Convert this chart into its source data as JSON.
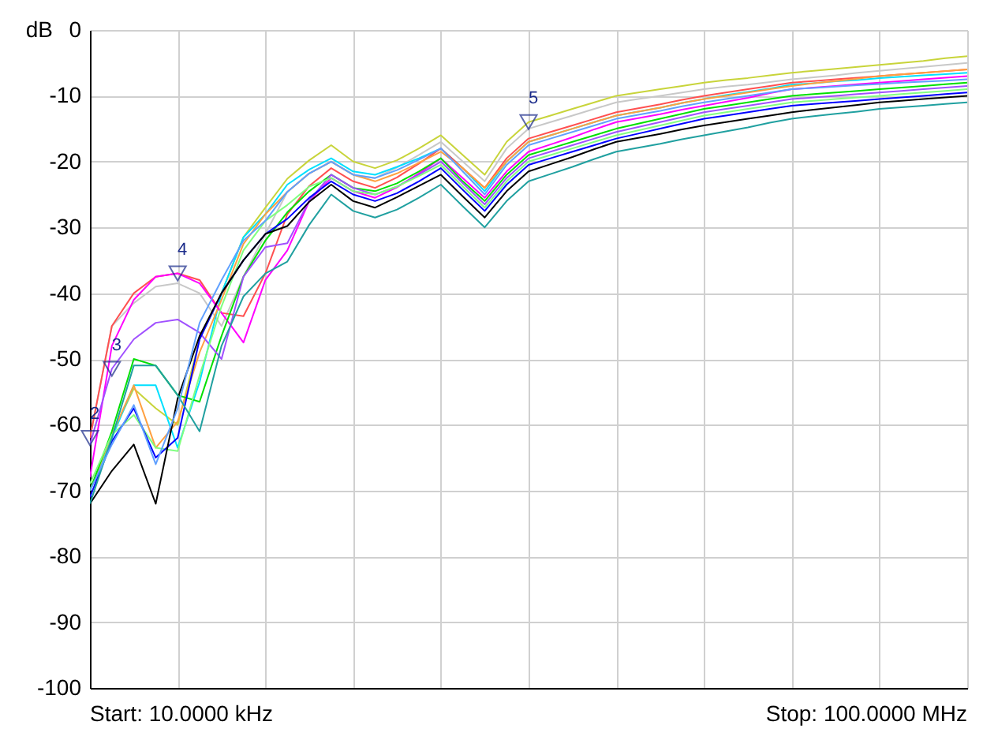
{
  "chart_data": {
    "type": "line",
    "ylabel": "dB",
    "grid": true,
    "tick_labels": "y",
    "ylim": [
      -100,
      0
    ],
    "yticks": [
      -100,
      -90,
      -80,
      -70,
      -60,
      -50,
      -40,
      -30,
      -20,
      -10,
      0
    ],
    "categories": [
      null,
      null,
      null,
      null,
      null,
      null,
      null,
      null,
      null,
      null,
      null,
      null,
      null,
      null,
      null,
      null,
      null,
      null,
      null,
      null,
      null,
      null,
      null,
      null,
      null,
      null,
      null,
      null,
      null,
      null,
      null,
      null,
      null,
      null,
      null,
      null,
      null,
      null,
      null,
      null,
      null
    ],
    "annotations": [
      "Start: 10.0000 kHz",
      "Stop: 100.0000 MHz",
      {
        "text": "2",
        "y": -62
      },
      {
        "text": "3",
        "y": -51.5
      },
      {
        "text": "4",
        "y": -37
      },
      {
        "text": "5",
        "y": -14
      }
    ],
    "series": [
      {
        "color": "#c8d43a",
        "values": [
          -70,
          -61.5,
          -54.5,
          -57.5,
          -60,
          -47,
          -40,
          -31.5,
          -27,
          -22.6,
          -19.8,
          -17.5,
          -20,
          -21,
          -19.8,
          -18,
          -16,
          -19,
          -22,
          -17,
          -14,
          -13,
          -12,
          -11,
          -10,
          -9.5,
          -9,
          -8.5,
          -8,
          -7.6,
          -7.3,
          -6.9,
          -6.5,
          -6.2,
          -5.9,
          -5.6,
          -5.3,
          -5,
          -4.7,
          -4.3,
          -4
        ]
      },
      {
        "color": "#c8c8c8",
        "values": [
          -62,
          -45,
          -41.5,
          -39,
          -38.5,
          -40,
          -45,
          -37.5,
          -31,
          -24.6,
          -21.8,
          -20,
          -22,
          -22.5,
          -20.9,
          -19,
          -17,
          -20,
          -23,
          -18,
          -15,
          -14,
          -13,
          -12,
          -11,
          -10.5,
          -10,
          -9.5,
          -9,
          -8.6,
          -8.3,
          -7.9,
          -7.5,
          -7.2,
          -6.9,
          -6.5,
          -6.2,
          -5.9,
          -5.6,
          -5.3,
          -5
        ]
      },
      {
        "color": "#00e0ff",
        "values": [
          -70,
          -62,
          -54,
          -54,
          -63.5,
          -53.5,
          -40,
          -31.5,
          -28,
          -23.5,
          -21.2,
          -19.5,
          -21.5,
          -22,
          -20.8,
          -19.5,
          -18,
          -21,
          -24.5,
          -20,
          -17,
          -16,
          -15,
          -14,
          -13,
          -12.4,
          -11.8,
          -11.1,
          -10.5,
          -9.9,
          -9.4,
          -8.9,
          -8.3,
          -8.1,
          -7.8,
          -7.6,
          -7.3,
          -7.1,
          -6.9,
          -6.7,
          -6.5
        ]
      },
      {
        "color": "#ff5050",
        "values": [
          -62,
          -45,
          -40,
          -37.5,
          -37,
          -38,
          -43,
          -43.5,
          -37,
          -28,
          -23.7,
          -21,
          -23,
          -24,
          -22.4,
          -20.3,
          -18,
          -21,
          -24,
          -19.5,
          -16.5,
          -15.5,
          -14.5,
          -13.5,
          -12.5,
          -11.9,
          -11.3,
          -10.6,
          -10,
          -9.5,
          -9,
          -8.5,
          -8,
          -7.75,
          -7.5,
          -7.25,
          -7,
          -6.75,
          -6.5,
          -6.25,
          -6
        ]
      },
      {
        "color": "#ffa040",
        "values": [
          -70,
          -61.5,
          -54,
          -63.5,
          -59.5,
          -49,
          -41,
          -32.5,
          -28,
          -24.6,
          -21.8,
          -20,
          -22,
          -23,
          -21.8,
          -20.2,
          -18.5,
          -21,
          -24,
          -20,
          -17,
          -16,
          -15,
          -14,
          -13,
          -12.4,
          -11.8,
          -11.1,
          -10.5,
          -10,
          -9.5,
          -9,
          -8.5,
          -8.1,
          -7.75,
          -7.4,
          -7,
          -6.75,
          -6.5,
          -6.25,
          -6
        ]
      },
      {
        "color": "#ff00ff",
        "values": [
          -68,
          -48,
          -41,
          -37.5,
          -37,
          -38.5,
          -43,
          -47.5,
          -38,
          -33.5,
          -26,
          -22.5,
          -24.5,
          -25.5,
          -23.9,
          -21.8,
          -19.5,
          -22.5,
          -25.5,
          -21.5,
          -18.5,
          -17.4,
          -16.3,
          -15.1,
          -14,
          -13.4,
          -12.8,
          -12.1,
          -11.5,
          -10.9,
          -10.3,
          -9.6,
          -9,
          -8.75,
          -8.5,
          -8.25,
          -8,
          -7.75,
          -7.5,
          -7.25,
          -7
        ]
      },
      {
        "color": "#00e000",
        "values": [
          -70,
          -61,
          -50,
          -51,
          -55.5,
          -56.5,
          -46.5,
          -37.5,
          -32,
          -27.7,
          -24.5,
          -22,
          -24,
          -24.5,
          -23.3,
          -21.5,
          -19.5,
          -23,
          -26,
          -22,
          -19,
          -18,
          -17,
          -16,
          -15,
          -14.25,
          -13.5,
          -12.75,
          -12,
          -11.5,
          -11,
          -10.5,
          -10,
          -9.75,
          -9.5,
          -9.25,
          -9,
          -8.75,
          -8.5,
          -8.25,
          -8
        ]
      },
      {
        "color": "#a050ff",
        "values": [
          -63,
          -51.5,
          -47,
          -44.5,
          -44,
          -46,
          -50,
          -37.5,
          -33,
          -32.4,
          -25.9,
          -22,
          -24,
          -25,
          -23.8,
          -22,
          -20,
          -23.3,
          -26.5,
          -22.5,
          -19.5,
          -18.5,
          -17.5,
          -16.5,
          -15.5,
          -14.75,
          -14,
          -13.25,
          -12.5,
          -12,
          -11.5,
          -11,
          -10.5,
          -10.25,
          -10,
          -9.75,
          -9.5,
          -9.25,
          -9,
          -8.75,
          -8.5
        ]
      },
      {
        "color": "#80ff80",
        "values": [
          -69,
          -61.5,
          -58.5,
          -63.5,
          -64,
          -52.5,
          -42,
          -33.5,
          -29,
          -26.6,
          -23.8,
          -22.5,
          -24.5,
          -25,
          -23.8,
          -22.2,
          -20.5,
          -23.8,
          -27,
          -23,
          -20,
          -19,
          -18,
          -17,
          -16,
          -15.25,
          -14.5,
          -13.75,
          -13,
          -12.5,
          -12,
          -11.5,
          -11,
          -10.75,
          -10.5,
          -10.25,
          -10,
          -9.75,
          -9.5,
          -9.25,
          -9
        ]
      },
      {
        "color": "#0000ff",
        "values": [
          -71,
          -62.5,
          -57.5,
          -65,
          -62,
          -47,
          -40,
          -35,
          -31,
          -28.7,
          -25.5,
          -23,
          -25,
          -26,
          -24.8,
          -23,
          -21,
          -24.3,
          -27.5,
          -23.5,
          -20.5,
          -19.5,
          -18.5,
          -17.5,
          -16.5,
          -15.75,
          -15,
          -14.25,
          -13.5,
          -13,
          -12.5,
          -12,
          -11.5,
          -11.25,
          -11,
          -10.75,
          -10.5,
          -10.25,
          -10,
          -9.75,
          -9.5
        ]
      },
      {
        "color": "#000000",
        "values": [
          -72,
          -67,
          -63,
          -72,
          -56,
          -46.5,
          -40,
          -35,
          -31,
          -29.8,
          -26.1,
          -23.5,
          -26,
          -27,
          -25.4,
          -23.7,
          -22,
          -25.3,
          -28.5,
          -24.5,
          -21.5,
          -20.4,
          -19.3,
          -18.1,
          -17,
          -16.4,
          -15.8,
          -15.1,
          -14.5,
          -14,
          -13.5,
          -13,
          -12.5,
          -12.1,
          -11.75,
          -11.4,
          -11,
          -10.75,
          -10.5,
          -10.25,
          -10
        ]
      },
      {
        "color": "#20a0a0",
        "values": [
          -72,
          -62,
          -51,
          -51,
          -55.5,
          -61,
          -48,
          -40.5,
          -37,
          -35.2,
          -29.6,
          -25,
          -27.5,
          -28.5,
          -27.3,
          -25.5,
          -23.5,
          -26.8,
          -30,
          -26,
          -23,
          -21.9,
          -20.8,
          -19.6,
          -18.5,
          -17.9,
          -17.3,
          -16.6,
          -16,
          -15.4,
          -14.8,
          -14.1,
          -13.5,
          -13.1,
          -12.75,
          -12.4,
          -12,
          -11.75,
          -11.5,
          -11.25,
          -11
        ]
      },
      {
        "color": "#60a0ff",
        "values": [
          -70,
          -63,
          -57,
          -66,
          -57.5,
          -44.5,
          -38,
          -32,
          -29,
          -24.6,
          -21.8,
          -20,
          -22,
          -22.5,
          -21.3,
          -19.7,
          -18,
          -21.5,
          -25,
          -20.5,
          -17.5,
          -16.5,
          -15.5,
          -14.5,
          -13.5,
          -12.9,
          -12.3,
          -11.6,
          -11,
          -10.5,
          -10,
          -9.5,
          -9,
          -8.8,
          -8.6,
          -8.4,
          -8.2,
          -8,
          -7.85,
          -7.7,
          -7.5
        ]
      }
    ]
  }
}
